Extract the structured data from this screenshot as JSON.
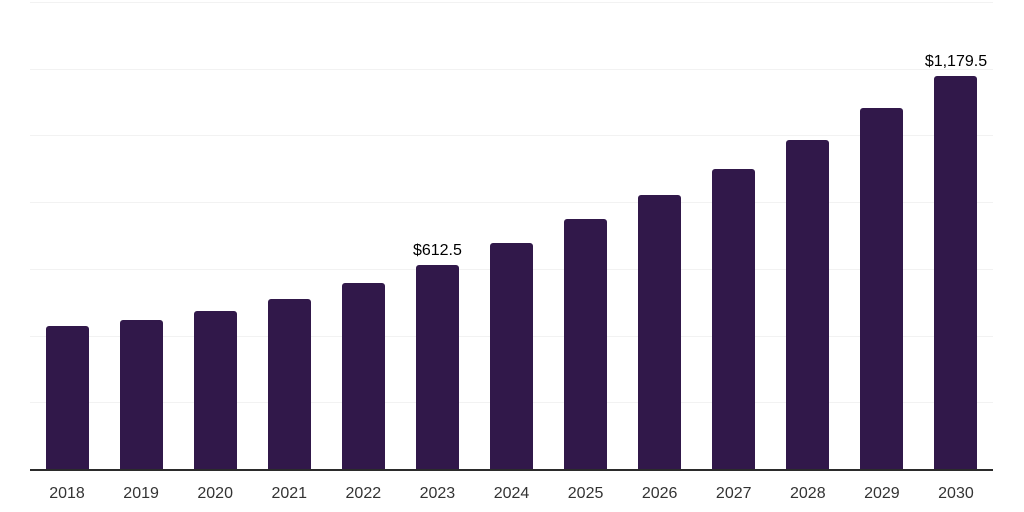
{
  "chart_data": {
    "type": "bar",
    "title": "",
    "xlabel": "",
    "ylabel": "",
    "categories": [
      "2018",
      "2019",
      "2020",
      "2021",
      "2022",
      "2023",
      "2024",
      "2025",
      "2026",
      "2027",
      "2028",
      "2029",
      "2030"
    ],
    "values": [
      428.5,
      446.5,
      473.5,
      510.0,
      556.5,
      612.5,
      677.0,
      748.0,
      820.5,
      900.0,
      986.5,
      1081.5,
      1179.5
    ],
    "data_labels": [
      {
        "category": "2023",
        "text": "$612.5"
      },
      {
        "category": "2030",
        "text": "$1,179.5"
      }
    ],
    "ylim": [
      0,
      1400
    ],
    "gridline_step": 200,
    "grid": "horizontal",
    "legend": "none",
    "colors": {
      "bar": "#31184a",
      "gridline": "#f2f2f2",
      "axis_line": "#2b2b2b",
      "tick_label": "#333333",
      "data_label": "#000000"
    }
  }
}
